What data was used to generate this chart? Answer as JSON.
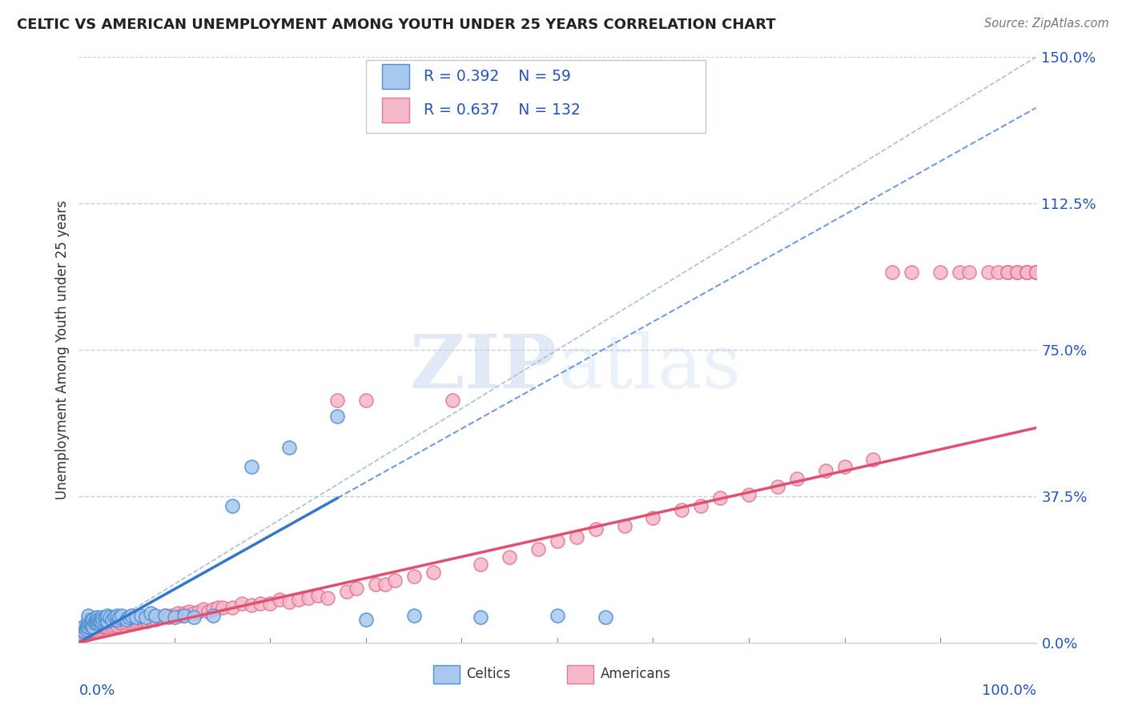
{
  "title": "CELTIC VS AMERICAN UNEMPLOYMENT AMONG YOUTH UNDER 25 YEARS CORRELATION CHART",
  "source": "Source: ZipAtlas.com",
  "ylabel": "Unemployment Among Youth under 25 years",
  "ytick_vals": [
    0.0,
    0.375,
    0.75,
    1.125,
    1.5
  ],
  "ytick_labels": [
    "0.0%",
    "37.5%",
    "75.0%",
    "112.5%",
    "150.0%"
  ],
  "xlim": [
    0.0,
    1.0
  ],
  "ylim": [
    0.0,
    1.5
  ],
  "celtics_color": "#A8C8EE",
  "celtics_edge_color": "#5090D0",
  "americans_color": "#F5B8C8",
  "americans_edge_color": "#E07898",
  "blue_line_color": "#3575CC",
  "pink_line_color": "#E05070",
  "ref_line_color": "#A8C0DC",
  "legend_color": "#2255BB",
  "legend_R_celtics": "0.392",
  "legend_N_celtics": "59",
  "legend_R_americans": "0.637",
  "legend_N_americans": "132",
  "watermark_color": "#D0DCF0",
  "grid_color": "#C8D0DC",
  "celtics_x": [
    0.005,
    0.005,
    0.007,
    0.008,
    0.009,
    0.01,
    0.01,
    0.01,
    0.01,
    0.012,
    0.012,
    0.013,
    0.014,
    0.015,
    0.015,
    0.016,
    0.017,
    0.018,
    0.019,
    0.02,
    0.02,
    0.021,
    0.022,
    0.023,
    0.024,
    0.025,
    0.027,
    0.028,
    0.03,
    0.03,
    0.032,
    0.035,
    0.037,
    0.04,
    0.04,
    0.042,
    0.045,
    0.05,
    0.052,
    0.055,
    0.06,
    0.065,
    0.07,
    0.075,
    0.08,
    0.09,
    0.1,
    0.11,
    0.12,
    0.14,
    0.16,
    0.18,
    0.22,
    0.27,
    0.3,
    0.35,
    0.42,
    0.5,
    0.55
  ],
  "celtics_y": [
    0.03,
    0.04,
    0.035,
    0.04,
    0.045,
    0.04,
    0.05,
    0.06,
    0.07,
    0.045,
    0.05,
    0.06,
    0.05,
    0.04,
    0.06,
    0.05,
    0.055,
    0.06,
    0.065,
    0.05,
    0.06,
    0.055,
    0.06,
    0.055,
    0.065,
    0.06,
    0.06,
    0.065,
    0.055,
    0.07,
    0.065,
    0.06,
    0.065,
    0.06,
    0.07,
    0.065,
    0.07,
    0.06,
    0.065,
    0.07,
    0.065,
    0.07,
    0.065,
    0.075,
    0.07,
    0.07,
    0.065,
    0.07,
    0.065,
    0.07,
    0.35,
    0.45,
    0.5,
    0.58,
    0.06,
    0.07,
    0.065,
    0.07,
    0.065
  ],
  "americans_x": [
    0.005,
    0.006,
    0.007,
    0.008,
    0.009,
    0.01,
    0.01,
    0.01,
    0.012,
    0.013,
    0.014,
    0.015,
    0.016,
    0.017,
    0.018,
    0.019,
    0.02,
    0.02,
    0.022,
    0.023,
    0.025,
    0.027,
    0.028,
    0.03,
    0.032,
    0.034,
    0.036,
    0.038,
    0.04,
    0.042,
    0.045,
    0.047,
    0.05,
    0.052,
    0.055,
    0.058,
    0.06,
    0.062,
    0.065,
    0.068,
    0.07,
    0.072,
    0.075,
    0.078,
    0.08,
    0.083,
    0.086,
    0.09,
    0.093,
    0.096,
    0.1,
    0.103,
    0.107,
    0.11,
    0.115,
    0.12,
    0.125,
    0.13,
    0.135,
    0.14,
    0.145,
    0.15,
    0.16,
    0.17,
    0.18,
    0.19,
    0.2,
    0.21,
    0.22,
    0.23,
    0.24,
    0.25,
    0.26,
    0.27,
    0.28,
    0.29,
    0.3,
    0.31,
    0.32,
    0.33,
    0.35,
    0.37,
    0.39,
    0.42,
    0.45,
    0.48,
    0.5,
    0.52,
    0.54,
    0.57,
    0.6,
    0.63,
    0.65,
    0.67,
    0.7,
    0.73,
    0.75,
    0.78,
    0.8,
    0.83,
    0.85,
    0.87,
    0.9,
    0.92,
    0.93,
    0.95,
    0.96,
    0.97,
    0.97,
    0.97,
    0.98,
    0.98,
    0.98,
    0.99,
    0.99,
    0.99,
    0.99,
    0.99,
    1.0,
    1.0,
    1.0,
    1.0,
    1.0,
    1.0,
    1.0,
    1.0,
    1.0,
    1.0,
    1.0,
    1.0,
    1.0,
    1.0
  ],
  "americans_y": [
    0.02,
    0.025,
    0.02,
    0.025,
    0.03,
    0.025,
    0.03,
    0.035,
    0.03,
    0.03,
    0.035,
    0.03,
    0.035,
    0.03,
    0.04,
    0.035,
    0.03,
    0.04,
    0.035,
    0.04,
    0.04,
    0.04,
    0.045,
    0.04,
    0.045,
    0.04,
    0.045,
    0.05,
    0.045,
    0.05,
    0.05,
    0.055,
    0.05,
    0.055,
    0.05,
    0.055,
    0.05,
    0.055,
    0.06,
    0.055,
    0.06,
    0.055,
    0.06,
    0.065,
    0.06,
    0.065,
    0.065,
    0.07,
    0.065,
    0.07,
    0.07,
    0.075,
    0.07,
    0.075,
    0.08,
    0.075,
    0.08,
    0.085,
    0.08,
    0.085,
    0.09,
    0.09,
    0.09,
    0.1,
    0.095,
    0.1,
    0.1,
    0.11,
    0.105,
    0.11,
    0.115,
    0.12,
    0.115,
    0.62,
    0.13,
    0.14,
    0.62,
    0.15,
    0.15,
    0.16,
    0.17,
    0.18,
    0.62,
    0.2,
    0.22,
    0.24,
    0.26,
    0.27,
    0.29,
    0.3,
    0.32,
    0.34,
    0.35,
    0.37,
    0.38,
    0.4,
    0.42,
    0.44,
    0.45,
    0.47,
    0.95,
    0.95,
    0.95,
    0.95,
    0.95,
    0.95,
    0.95,
    0.95,
    0.95,
    0.95,
    0.95,
    0.95,
    0.95,
    0.95,
    0.95,
    0.95,
    0.95,
    0.95,
    0.95,
    0.95,
    0.95,
    0.95,
    0.95,
    0.95,
    0.95,
    0.95,
    0.95,
    0.95,
    0.95,
    0.95,
    0.95,
    0.95
  ]
}
